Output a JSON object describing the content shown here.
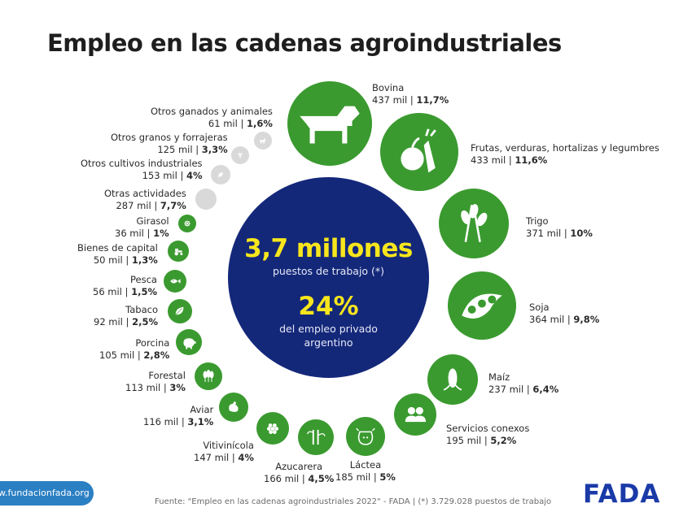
{
  "title": "Empleo en las cadenas agroindustriales",
  "center": {
    "total": "3,7 millones",
    "total_label": "puestos de trabajo (*)",
    "share": "24%",
    "share_label": "del empleo privado argentino"
  },
  "footer": {
    "website": "www.fundacionfada.org",
    "source": "Fuente: \"Empleo en las cadenas agroindustriales 2022\" - FADA | (*) 3.729.028 puestos de trabajo",
    "logo": "FADA"
  },
  "colors": {
    "green": "#3a9a2f",
    "grey": "#d9d9d9",
    "navy": "#14287a",
    "yellow": "#f7e61c"
  },
  "chart_data": {
    "type": "bubble",
    "title": "Empleo en las cadenas agroindustriales",
    "unit": "mil puestos",
    "series": [
      {
        "name": "Bovina",
        "jobs_thousands": 437,
        "share_pct": 11.7,
        "value": "437 mil",
        "pct": "11,7%",
        "icon": "cow-icon",
        "group": "main"
      },
      {
        "name": "Frutas, verduras, hortalizas y legumbres",
        "jobs_thousands": 433,
        "share_pct": 11.6,
        "value": "433 mil",
        "pct": "11,6%",
        "icon": "fruit-vegetables-icon",
        "group": "main"
      },
      {
        "name": "Trigo",
        "jobs_thousands": 371,
        "share_pct": 10,
        "value": "371 mil",
        "pct": "10%",
        "icon": "wheat-icon",
        "group": "main"
      },
      {
        "name": "Soja",
        "jobs_thousands": 364,
        "share_pct": 9.8,
        "value": "364 mil",
        "pct": "9,8%",
        "icon": "soybean-pod-icon",
        "group": "main"
      },
      {
        "name": "Maíz",
        "jobs_thousands": 237,
        "share_pct": 6.4,
        "value": "237 mil",
        "pct": "6,4%",
        "icon": "corn-icon",
        "group": "main"
      },
      {
        "name": "Servicios conexos",
        "jobs_thousands": 195,
        "share_pct": 5.2,
        "value": "195 mil",
        "pct": "5,2%",
        "icon": "people-icon",
        "group": "main"
      },
      {
        "name": "Láctea",
        "jobs_thousands": 185,
        "share_pct": 5,
        "value": "185 mil",
        "pct": "5%",
        "icon": "dairy-cow-icon",
        "group": "main"
      },
      {
        "name": "Azucarera",
        "jobs_thousands": 166,
        "share_pct": 4.5,
        "value": "166 mil",
        "pct": "4,5%",
        "icon": "sugarcane-icon",
        "group": "main"
      },
      {
        "name": "Vitivinícola",
        "jobs_thousands": 147,
        "share_pct": 4,
        "value": "147 mil",
        "pct": "4%",
        "icon": "grapes-icon",
        "group": "main"
      },
      {
        "name": "Aviar",
        "jobs_thousands": 116,
        "share_pct": 3.1,
        "value": "116 mil",
        "pct": "3,1%",
        "icon": "chicken-icon",
        "group": "main"
      },
      {
        "name": "Forestal",
        "jobs_thousands": 113,
        "share_pct": 3,
        "value": "113 mil",
        "pct": "3%",
        "icon": "trees-icon",
        "group": "main"
      },
      {
        "name": "Porcina",
        "jobs_thousands": 105,
        "share_pct": 2.8,
        "value": "105 mil",
        "pct": "2,8%",
        "icon": "pig-icon",
        "group": "main"
      },
      {
        "name": "Tabaco",
        "jobs_thousands": 92,
        "share_pct": 2.5,
        "value": "92 mil",
        "pct": "2,5%",
        "icon": "tobacco-leaf-icon",
        "group": "main"
      },
      {
        "name": "Pesca",
        "jobs_thousands": 56,
        "share_pct": 1.5,
        "value": "56 mil",
        "pct": "1,5%",
        "icon": "fish-icon",
        "group": "main"
      },
      {
        "name": "Bienes de capital",
        "jobs_thousands": 50,
        "share_pct": 1.3,
        "value": "50 mil",
        "pct": "1,3%",
        "icon": "tractor-icon",
        "group": "main"
      },
      {
        "name": "Girasol",
        "jobs_thousands": 36,
        "share_pct": 1,
        "value": "36 mil",
        "pct": "1%",
        "icon": "sunflower-icon",
        "group": "main"
      },
      {
        "name": "Otras actividades",
        "jobs_thousands": 287,
        "share_pct": 7.7,
        "value": "287 mil",
        "pct": "7,7%",
        "icon": "",
        "group": "other"
      },
      {
        "name": "Otros cultivos industriales",
        "jobs_thousands": 153,
        "share_pct": 4,
        "value": "153 mil",
        "pct": "4%",
        "icon": "leaf-icon",
        "group": "other"
      },
      {
        "name": "Otros granos y forrajeras",
        "jobs_thousands": 125,
        "share_pct": 3.3,
        "value": "125 mil",
        "pct": "3,3%",
        "icon": "grain-icon",
        "group": "other"
      },
      {
        "name": "Otros ganados y animales",
        "jobs_thousands": 61,
        "share_pct": 1.6,
        "value": "61 mil",
        "pct": "1,6%",
        "icon": "goat-icon",
        "group": "other"
      }
    ]
  }
}
